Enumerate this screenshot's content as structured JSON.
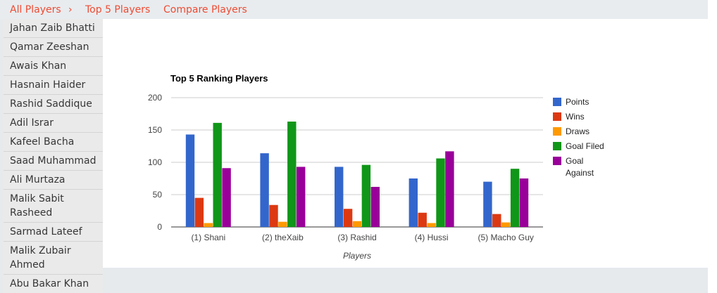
{
  "breadcrumb": {
    "all_players": "All Players",
    "separator": "›",
    "top5": "Top 5 Players",
    "compare": "Compare Players"
  },
  "sidebar": {
    "items": [
      {
        "label": "Jahan Zaib Bhatti"
      },
      {
        "label": "Qamar Zeeshan"
      },
      {
        "label": "Awais Khan"
      },
      {
        "label": "Hasnain Haider"
      },
      {
        "label": "Rashid Saddique"
      },
      {
        "label": "Adil Israr"
      },
      {
        "label": "Kafeel Bacha"
      },
      {
        "label": "Saad Muhammad"
      },
      {
        "label": "Ali Murtaza"
      },
      {
        "label": "Malik Sabit Rasheed"
      },
      {
        "label": "Sarmad Lateef"
      },
      {
        "label": "Malik Zubair Ahmed"
      },
      {
        "label": "Abu Bakar Khan"
      }
    ]
  },
  "chart_data": {
    "type": "bar",
    "title": "Top 5 Ranking Players",
    "xlabel": "Players",
    "ylabel": "",
    "ylim": [
      0,
      200
    ],
    "yticks": [
      0,
      50,
      100,
      150,
      200
    ],
    "grid": true,
    "legend_position": "right",
    "categories": [
      "(1) Shani",
      "(2) theXaib",
      "(3) Rashid",
      "(4) Hussi",
      "(5) Macho Guy"
    ],
    "series": [
      {
        "name": "Points",
        "color": "#3366cc",
        "values": [
          143,
          114,
          93,
          75,
          70
        ]
      },
      {
        "name": "Wins",
        "color": "#dc3912",
        "values": [
          45,
          34,
          28,
          22,
          20
        ]
      },
      {
        "name": "Draws",
        "color": "#ff9900",
        "values": [
          6,
          8,
          9,
          6,
          7
        ]
      },
      {
        "name": "Goal Filed",
        "color": "#109618",
        "values": [
          161,
          163,
          96,
          106,
          90
        ]
      },
      {
        "name": "Goal Against",
        "color": "#990099",
        "values": [
          91,
          93,
          62,
          117,
          75
        ]
      }
    ]
  }
}
